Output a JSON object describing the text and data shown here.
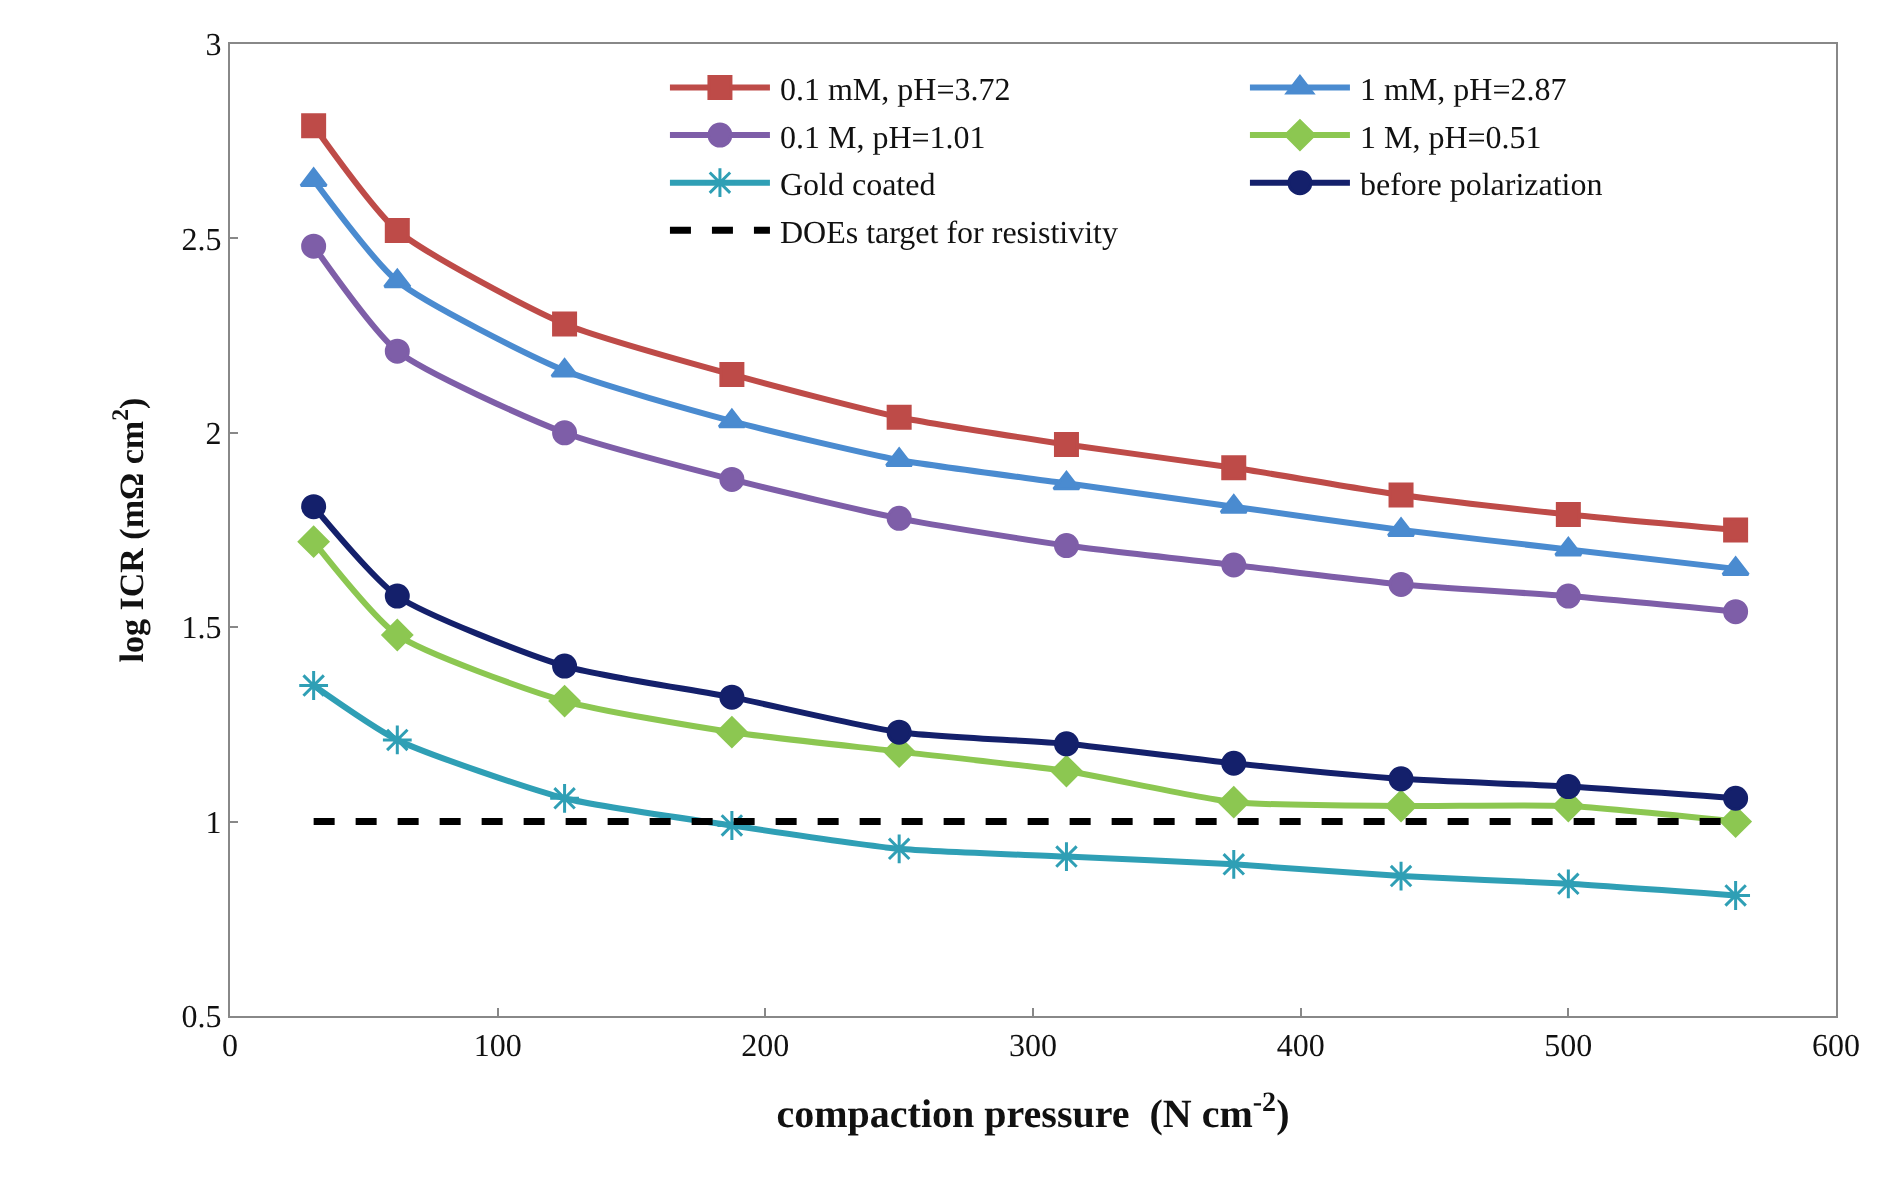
{
  "chart_data": {
    "type": "line",
    "xlabel": "compaction pressure  (N cm$^{-2}$)",
    "ylabel": "log ICR (mΩ cm$^{2}$)",
    "x": [
      31.25,
      62.5,
      125,
      187.5,
      250,
      312.5,
      375,
      437.5,
      500,
      562.5
    ],
    "xlim": [
      0,
      600
    ],
    "xticks": [
      0,
      100,
      200,
      300,
      400,
      500,
      600
    ],
    "ylim": [
      0.5,
      3
    ],
    "yticks": [
      0.5,
      1,
      1.5,
      2,
      2.5,
      3
    ],
    "legend": "top right",
    "line_style": "solid",
    "series": [
      {
        "name": "0.1 mM, pH=3.72",
        "color": "#be4b48",
        "marker": "square",
        "values": [
          2.79,
          2.52,
          2.28,
          2.15,
          2.04,
          1.97,
          1.91,
          1.84,
          1.79,
          1.75
        ]
      },
      {
        "name": "1 mM, pH=2.87",
        "color": "#4a8bd0",
        "marker": "triangle",
        "values": [
          2.65,
          2.39,
          2.16,
          2.03,
          1.93,
          1.87,
          1.81,
          1.75,
          1.7,
          1.65
        ]
      },
      {
        "name": "0.1 M, pH=1.01",
        "color": "#7e5ea8",
        "marker": "circle",
        "values": [
          2.48,
          2.21,
          2.0,
          1.88,
          1.78,
          1.71,
          1.66,
          1.61,
          1.58,
          1.54
        ]
      },
      {
        "name": "1 M, pH=0.51",
        "color": "#8cc751",
        "marker": "diamond",
        "values": [
          1.72,
          1.48,
          1.31,
          1.23,
          1.18,
          1.13,
          1.05,
          1.04,
          1.04,
          1.0
        ]
      },
      {
        "name": "Gold coated",
        "color": "#2f9fb5",
        "marker": "cross",
        "values": [
          1.35,
          1.21,
          1.06,
          0.99,
          0.93,
          0.91,
          0.89,
          0.86,
          0.84,
          0.81
        ]
      },
      {
        "name": "before polarization",
        "color": "#14206b",
        "marker": "circle",
        "values": [
          1.81,
          1.58,
          1.4,
          1.32,
          1.23,
          1.2,
          1.15,
          1.11,
          1.09,
          1.06
        ]
      },
      {
        "name": "DOEs target for resistivity",
        "color": "#000000",
        "marker": "none",
        "line_style": "dashed",
        "x": [
          31.25,
          562.5
        ],
        "values": [
          1,
          1
        ]
      }
    ]
  }
}
